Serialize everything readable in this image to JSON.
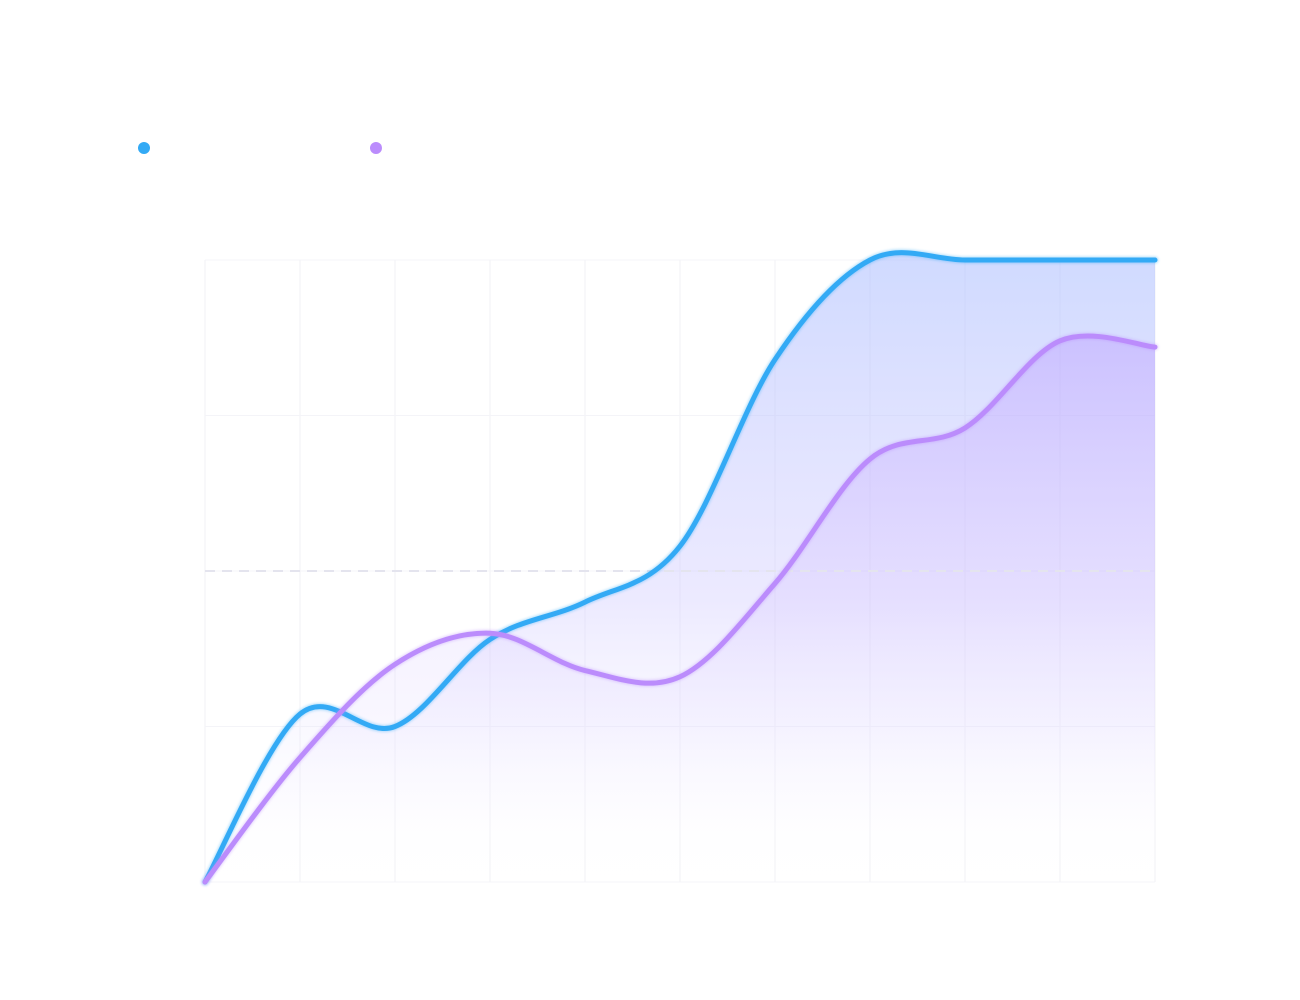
{
  "chart_data": {
    "type": "area",
    "title": "",
    "xlabel": "",
    "ylabel": "",
    "x": [
      0,
      1,
      2,
      3,
      4,
      5,
      6,
      7,
      8,
      9,
      10
    ],
    "ylim": [
      0,
      100
    ],
    "grid": true,
    "reference_line": {
      "y": 50,
      "style": "dashed"
    },
    "legend": "top-left",
    "series": [
      {
        "color": "#33aaf5",
        "values": [
          0,
          27,
          25,
          39,
          45,
          54,
          84,
          100,
          100,
          100,
          100
        ],
        "fill": true
      },
      {
        "color": "#bb8cfc",
        "values": [
          0,
          20,
          35,
          40,
          34,
          33,
          48,
          68,
          73,
          87,
          86
        ],
        "fill": true
      }
    ]
  }
}
